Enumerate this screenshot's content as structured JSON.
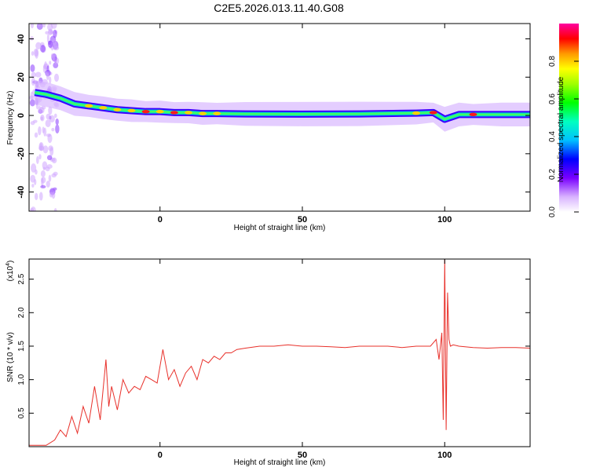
{
  "title": "C2E5.2026.013.11.40.G08",
  "chart_data": [
    {
      "type": "heatmap",
      "xlabel": "Height of straight line (km)",
      "ylabel": "Frequency (Hz)",
      "xlim": [
        -46,
        130
      ],
      "ylim": [
        -50,
        48
      ],
      "xticks": [
        0,
        50,
        100
      ],
      "yticks": [
        -40,
        -20,
        0,
        20,
        40
      ],
      "ridge": [
        {
          "x": -44,
          "freq": 12,
          "amp": 0.55
        },
        {
          "x": -40,
          "freq": 11,
          "amp": 0.5
        },
        {
          "x": -35,
          "freq": 9,
          "amp": 0.6
        },
        {
          "x": -30,
          "freq": 6,
          "amp": 0.6
        },
        {
          "x": -25,
          "freq": 5,
          "amp": 0.75
        },
        {
          "x": -20,
          "freq": 4,
          "amp": 0.7
        },
        {
          "x": -15,
          "freq": 3,
          "amp": 0.75
        },
        {
          "x": -10,
          "freq": 2.5,
          "amp": 0.7
        },
        {
          "x": -5,
          "freq": 2,
          "amp": 0.85
        },
        {
          "x": 0,
          "freq": 2,
          "amp": 0.75
        },
        {
          "x": 5,
          "freq": 1.5,
          "amp": 0.85
        },
        {
          "x": 10,
          "freq": 1.5,
          "amp": 0.8
        },
        {
          "x": 15,
          "freq": 1,
          "amp": 0.7
        },
        {
          "x": 20,
          "freq": 1,
          "amp": 0.8
        },
        {
          "x": 30,
          "freq": 0.8,
          "amp": 0.6
        },
        {
          "x": 50,
          "freq": 0.7,
          "amp": 0.55
        },
        {
          "x": 70,
          "freq": 0.8,
          "amp": 0.55
        },
        {
          "x": 90,
          "freq": 1.2,
          "amp": 0.7
        },
        {
          "x": 96,
          "freq": 1.5,
          "amp": 0.95
        },
        {
          "x": 100,
          "freq": -2,
          "amp": 0.5
        },
        {
          "x": 105,
          "freq": 0.5,
          "amp": 0.6
        },
        {
          "x": 110,
          "freq": 0.5,
          "amp": 0.85
        },
        {
          "x": 120,
          "freq": 0.5,
          "amp": 0.6
        },
        {
          "x": 130,
          "freq": 0.5,
          "amp": 0.6
        }
      ],
      "colorbar": {
        "label": "Normalized spectral amplitude",
        "range": [
          0,
          1
        ],
        "ticks": [
          "0.0",
          "0.2",
          "0.4",
          "0.6",
          "0.8"
        ]
      }
    },
    {
      "type": "line",
      "xlabel": "Height of straight line (km)",
      "ylabel": "SNR (10 * v/v)",
      "yscale_label": "(x10",
      "yscale_exp": "4",
      "yscale_close": ")",
      "xlim": [
        -46,
        130
      ],
      "ylim": [
        0,
        2.8
      ],
      "xticks": [
        0,
        50,
        100
      ],
      "yticks": [
        "0.5",
        "1.0",
        "1.5",
        "2.0",
        "2.5"
      ],
      "series": [
        {
          "color": "#e8302a",
          "x": [
            -46,
            -40,
            -37,
            -35,
            -33,
            -31,
            -29,
            -27,
            -25,
            -23,
            -21,
            -19,
            -18,
            -17,
            -15,
            -13,
            -11,
            -9,
            -7,
            -5,
            -3,
            -1,
            1,
            3,
            5,
            7,
            9,
            11,
            13,
            15,
            17,
            19,
            21,
            23,
            25,
            27,
            30,
            35,
            40,
            45,
            50,
            55,
            60,
            65,
            70,
            75,
            80,
            85,
            90,
            95,
            97,
            98,
            99,
            99.5,
            100,
            100.5,
            101,
            101.5,
            102,
            103,
            105,
            110,
            115,
            120,
            125,
            130
          ],
          "y": [
            0.02,
            0.02,
            0.1,
            0.25,
            0.15,
            0.45,
            0.2,
            0.6,
            0.35,
            0.9,
            0.4,
            1.3,
            0.6,
            0.9,
            0.55,
            1.0,
            0.8,
            0.9,
            0.85,
            1.05,
            1.0,
            0.95,
            1.45,
            1.0,
            1.15,
            0.9,
            1.1,
            1.2,
            1.0,
            1.3,
            1.25,
            1.35,
            1.3,
            1.4,
            1.4,
            1.45,
            1.47,
            1.5,
            1.5,
            1.52,
            1.5,
            1.5,
            1.49,
            1.48,
            1.5,
            1.5,
            1.5,
            1.48,
            1.5,
            1.5,
            1.6,
            1.3,
            1.7,
            0.4,
            2.8,
            0.25,
            2.3,
            1.6,
            1.5,
            1.52,
            1.5,
            1.48,
            1.47,
            1.48,
            1.48,
            1.47
          ]
        }
      ]
    }
  ]
}
